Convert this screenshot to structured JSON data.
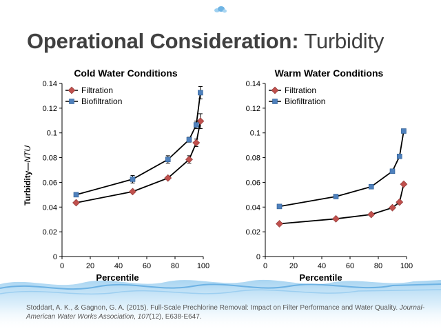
{
  "title": {
    "bold_part": "Operational Consideration:",
    "normal_part": "Turbidity"
  },
  "colors": {
    "filtration": "#c0504d",
    "biofiltration": "#4f81bd",
    "title": "#404040",
    "water": "#7fb8e6"
  },
  "chart_data": [
    {
      "type": "line",
      "title": "Cold Water Conditions",
      "xlabel": "Percentile",
      "ylabel": "Turbidity—NTU",
      "xlim": [
        0,
        100
      ],
      "ylim": [
        0,
        0.14
      ],
      "xticks": [
        0,
        20,
        40,
        60,
        80,
        100
      ],
      "yticks": [
        0,
        0.02,
        0.04,
        0.06,
        0.08,
        0.1,
        0.12,
        0.14
      ],
      "ytick_labels": [
        "0",
        "0.02",
        "0.04",
        "0.06",
        "0.08",
        "0.1",
        "0.12",
        "0.14"
      ],
      "grid": false,
      "legend": "top-left",
      "series": [
        {
          "name": "Filtration",
          "marker": "diamond",
          "color": "#c0504d",
          "x": [
            10,
            50,
            75,
            90,
            95,
            98
          ],
          "y": [
            0.0435,
            0.0525,
            0.0635,
            0.0785,
            0.092,
            0.1095
          ],
          "err": [
            0,
            0,
            0,
            0.003,
            0.003,
            0.006
          ]
        },
        {
          "name": "Biofiltration",
          "marker": "square",
          "color": "#4f81bd",
          "x": [
            10,
            50,
            75,
            90,
            95,
            98
          ],
          "y": [
            0.05,
            0.0625,
            0.0785,
            0.0945,
            0.1065,
            0.1325
          ],
          "err": [
            0.001,
            0.003,
            0.003,
            0.002,
            0.003,
            0.005
          ]
        }
      ]
    },
    {
      "type": "line",
      "title": "Warm Water Conditions",
      "xlabel": "Percentile",
      "ylabel": "",
      "xlim": [
        0,
        100
      ],
      "ylim": [
        0,
        0.14
      ],
      "xticks": [
        0,
        20,
        40,
        60,
        80,
        100
      ],
      "yticks": [
        0,
        0.02,
        0.04,
        0.06,
        0.08,
        0.1,
        0.12,
        0.14
      ],
      "ytick_labels": [
        "0",
        "0.02",
        "0.04",
        "0.06",
        "0.08",
        "0.1",
        "0.12",
        "0.14"
      ],
      "grid": false,
      "legend": "top-left",
      "series": [
        {
          "name": "Filtration",
          "marker": "diamond",
          "color": "#c0504d",
          "x": [
            10,
            50,
            75,
            90,
            95,
            98
          ],
          "y": [
            0.0265,
            0.0305,
            0.034,
            0.0395,
            0.044,
            0.0585
          ],
          "err": [
            0,
            0,
            0,
            0,
            0,
            0
          ]
        },
        {
          "name": "Biofiltration",
          "marker": "square",
          "color": "#4f81bd",
          "x": [
            10,
            50,
            75,
            90,
            95,
            98
          ],
          "y": [
            0.0405,
            0.0485,
            0.0565,
            0.069,
            0.081,
            0.1015
          ],
          "err": [
            0,
            0,
            0,
            0,
            0,
            0
          ]
        }
      ]
    }
  ],
  "citation": {
    "authors": "Stoddart, A. K., & Gagnon, G. A. (2015). Full-Scale Prechlorine Removal: Impact on Filter Performance and Water Quality.",
    "journal": "Journal-American Water Works Association",
    "volume": "107",
    "issue_pages": "(12), E638-E647."
  }
}
